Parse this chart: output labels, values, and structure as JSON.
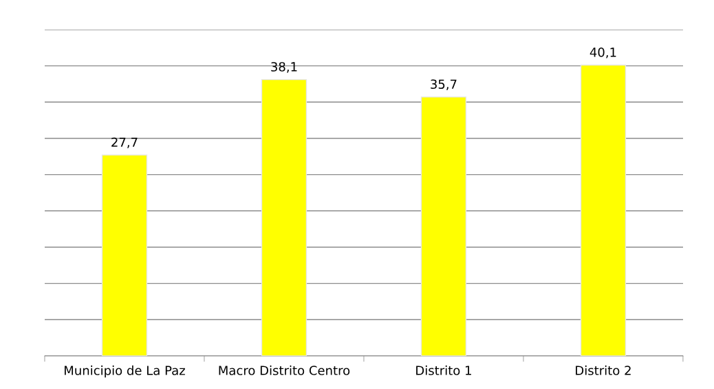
{
  "chart_data": {
    "type": "bar",
    "categories": [
      "Municipio de La Paz",
      "Macro Distrito Centro",
      "Distrito 1",
      "Distrito 2"
    ],
    "values": [
      27.7,
      38.1,
      35.7,
      40.1
    ],
    "value_labels": [
      "27,7",
      "38,1",
      "35,7",
      "40,1"
    ],
    "color": "#ffff00",
    "ylim": [
      0,
      45
    ],
    "yticks": [
      {
        "value": 0,
        "label": null
      },
      {
        "value": 5,
        "label": null
      },
      {
        "value": 10,
        "label": null
      },
      {
        "value": 15,
        "label": null
      },
      {
        "value": 20,
        "label": null
      },
      {
        "value": 25,
        "label": null
      },
      {
        "value": 30,
        "label": null
      },
      {
        "value": 35,
        "label": null
      },
      {
        "value": 40,
        "label": null
      },
      {
        "value": 45,
        "label": null
      }
    ],
    "grid": "y",
    "tick_labels": "x",
    "legend": false
  }
}
